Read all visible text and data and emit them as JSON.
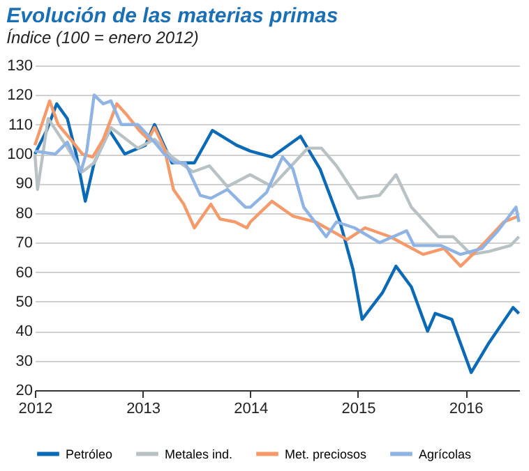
{
  "chart_data": {
    "type": "line",
    "title": "Evolución de las materias primas",
    "subtitle": "Índice (100 = enero 2012)",
    "xlim": [
      "2012-01-01",
      "2016-07-01"
    ],
    "xticks": [
      "2012",
      "2013",
      "2014",
      "2015",
      "2016"
    ],
    "ylim": [
      20,
      130
    ],
    "yticks": [
      20,
      30,
      40,
      50,
      60,
      70,
      80,
      90,
      100,
      110,
      120,
      130
    ],
    "grid": "y",
    "legend": "bottom",
    "line_style": "solid",
    "marker": "none",
    "series": [
      {
        "name": "Petróleo",
        "color": "#0a6ab6",
        "x": [
          "2012-01-01",
          "2012-02-10",
          "2012-03-15",
          "2012-04-20",
          "2012-05-20",
          "2012-06-20",
          "2012-07-20",
          "2012-09-10",
          "2012-11-01",
          "2013-01-10",
          "2013-02-10",
          "2013-04-10",
          "2013-06-25",
          "2013-08-25",
          "2013-11-15",
          "2014-01-01",
          "2014-03-15",
          "2014-06-20",
          "2014-08-25",
          "2014-11-01",
          "2014-12-15",
          "2015-01-15",
          "2015-03-25",
          "2015-05-10",
          "2015-07-01",
          "2015-08-25",
          "2015-09-20",
          "2015-11-15",
          "2016-01-20",
          "2016-03-20",
          "2016-06-10",
          "2016-06-30"
        ],
        "values": [
          100,
          108,
          117,
          112,
          100,
          84,
          97,
          108,
          100,
          103,
          110,
          97,
          97,
          108,
          103,
          101,
          99,
          106,
          95,
          77,
          61,
          44,
          53,
          62,
          55,
          40,
          46,
          44,
          26,
          36,
          48,
          46
        ]
      },
      {
        "name": "Metales ind.",
        "color": "#b8c2c4",
        "x": [
          "2012-01-01",
          "2012-01-10",
          "2012-02-15",
          "2012-04-15",
          "2012-06-10",
          "2012-07-20",
          "2012-09-15",
          "2012-12-15",
          "2013-02-10",
          "2013-04-10",
          "2013-06-20",
          "2013-08-15",
          "2013-10-15",
          "2013-12-31",
          "2014-03-15",
          "2014-07-15",
          "2014-08-30",
          "2014-10-20",
          "2015-01-01",
          "2015-03-15",
          "2015-05-10",
          "2015-07-01",
          "2015-10-01",
          "2015-11-20",
          "2016-01-20",
          "2016-03-20",
          "2016-06-01",
          "2016-06-30"
        ],
        "values": [
          100,
          88,
          112,
          103,
          94,
          97,
          109,
          102,
          105,
          99,
          94,
          96,
          89,
          93,
          89,
          102,
          102,
          96,
          85,
          86,
          93,
          82,
          72,
          72,
          66,
          67,
          69,
          72
        ]
      },
      {
        "name": "Met. preciosos",
        "color": "#f59a6a",
        "x": [
          "2012-01-01",
          "2012-02-20",
          "2012-03-20",
          "2012-05-01",
          "2012-06-10",
          "2012-07-15",
          "2012-08-20",
          "2012-10-05",
          "2012-11-10",
          "2012-12-20",
          "2013-01-20",
          "2013-02-10",
          "2013-03-15",
          "2013-04-15",
          "2013-05-20",
          "2013-06-25",
          "2013-08-20",
          "2013-09-20",
          "2013-11-10",
          "2013-12-20",
          "2014-01-01",
          "2014-03-15",
          "2014-05-25",
          "2014-08-10",
          "2014-11-25",
          "2015-01-25",
          "2015-04-20",
          "2015-08-10",
          "2015-10-20",
          "2015-12-15",
          "2016-02-25",
          "2016-05-10",
          "2016-06-30"
        ],
        "values": [
          103,
          118,
          110,
          105,
          100,
          99,
          105,
          117,
          113,
          108,
          105,
          109,
          102,
          88,
          83,
          75,
          83,
          78,
          77,
          75,
          77,
          84,
          79,
          77,
          71,
          75,
          72,
          66,
          68,
          62,
          69,
          77,
          79
        ]
      },
      {
        "name": "Agrícolas",
        "color": "#8fb3e3",
        "x": [
          "2012-01-01",
          "2012-03-10",
          "2012-04-20",
          "2012-06-05",
          "2012-06-25",
          "2012-07-20",
          "2012-08-20",
          "2012-09-15",
          "2012-10-20",
          "2012-12-15",
          "2013-02-10",
          "2013-03-15",
          "2013-04-20",
          "2013-05-25",
          "2013-07-15",
          "2013-08-20",
          "2013-10-15",
          "2013-12-15",
          "2014-01-01",
          "2014-02-25",
          "2014-04-20",
          "2014-05-25",
          "2014-07-01",
          "2014-09-15",
          "2014-10-20",
          "2014-12-20",
          "2015-03-15",
          "2015-06-15",
          "2015-07-10",
          "2015-10-10",
          "2015-12-15",
          "2016-02-25",
          "2016-04-20",
          "2016-06-20",
          "2016-06-30"
        ],
        "values": [
          101,
          100,
          104,
          94,
          101,
          120,
          117,
          118,
          110,
          110,
          104,
          100,
          97,
          97,
          86,
          85,
          88,
          82,
          82,
          87,
          99,
          95,
          82,
          72,
          77,
          75,
          70,
          74,
          69,
          69,
          66,
          68,
          74,
          82,
          77
        ]
      }
    ]
  }
}
